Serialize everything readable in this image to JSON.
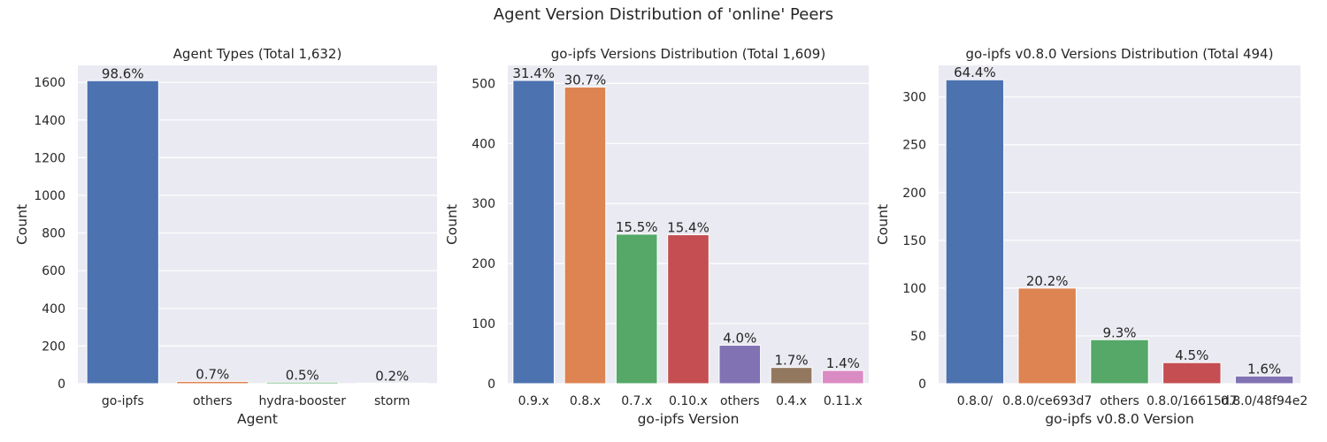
{
  "figure": {
    "suptitle": "Agent Version Distribution of 'online' Peers"
  },
  "chart_data": [
    {
      "type": "bar",
      "title": "Agent Types (Total 1,632)",
      "xlabel": "Agent",
      "ylabel": "Count",
      "categories": [
        "go-ipfs",
        "others",
        "hydra-booster",
        "storm"
      ],
      "values": [
        1609,
        12,
        8,
        3
      ],
      "bar_labels": [
        "98.6%",
        "0.7%",
        "0.5%",
        "0.2%"
      ],
      "ylim": [
        0,
        1690
      ],
      "yticks": [
        0,
        200,
        400,
        600,
        800,
        1000,
        1200,
        1400,
        1600
      ],
      "colors": [
        "#4C72B0",
        "#DD8452",
        "#55A868",
        "#C44E52"
      ],
      "grid": true
    },
    {
      "type": "bar",
      "title": "go-ipfs Versions Distribution (Total 1,609)",
      "xlabel": "go-ipfs Version",
      "ylabel": "Count",
      "categories": [
        "0.9.x",
        "0.8.x",
        "0.7.x",
        "0.10.x",
        "others",
        "0.4.x",
        "0.11.x"
      ],
      "values": [
        505,
        494,
        249,
        248,
        64,
        27,
        22
      ],
      "bar_labels": [
        "31.4%",
        "30.7%",
        "15.5%",
        "15.4%",
        "4.0%",
        "1.7%",
        "1.4%"
      ],
      "ylim": [
        0,
        530
      ],
      "yticks": [
        0,
        100,
        200,
        300,
        400,
        500
      ],
      "colors": [
        "#4C72B0",
        "#DD8452",
        "#55A868",
        "#C44E52",
        "#8172B3",
        "#937860",
        "#DA8BC3"
      ],
      "grid": true
    },
    {
      "type": "bar",
      "title": "go-ipfs v0.8.0 Versions Distribution (Total 494)",
      "xlabel": "go-ipfs v0.8.0 Version",
      "ylabel": "Count",
      "categories": [
        "0.8.0/",
        "0.8.0/ce693d7",
        "others",
        "0.8.0/16615d7",
        "0.8.0/48f94e2"
      ],
      "values": [
        318,
        100,
        46,
        22,
        8
      ],
      "bar_labels": [
        "64.4%",
        "20.2%",
        "9.3%",
        "4.5%",
        "1.6%"
      ],
      "ylim": [
        0,
        333
      ],
      "yticks": [
        0,
        50,
        100,
        150,
        200,
        250,
        300
      ],
      "colors": [
        "#4C72B0",
        "#DD8452",
        "#55A868",
        "#C44E52",
        "#8172B3"
      ],
      "grid": true
    }
  ]
}
